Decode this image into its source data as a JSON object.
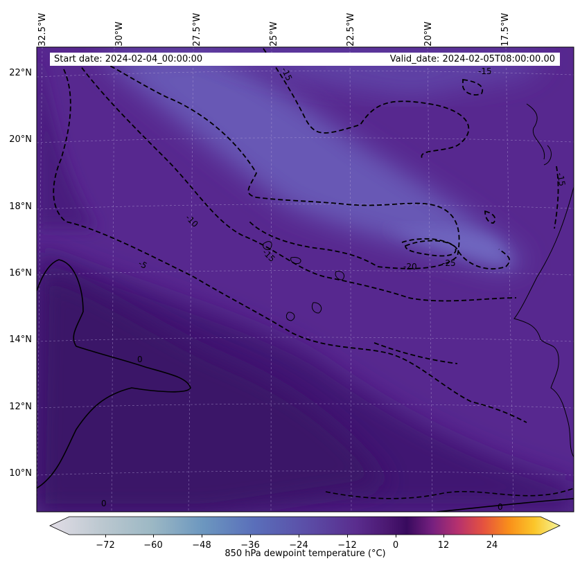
{
  "map": {
    "colorbar_label": "850 hPa dewpoint temperature ($^\\circ$C)",
    "colorbar_label_display": "850 hPa dewpoint temperature (°C)",
    "start_date": "Start date: 2024-02-04_00:00:00",
    "valid_date": "Valid_date: 2024-02-05T08:00:00.00",
    "longitude_labels": [
      "32.5°W",
      "30°W",
      "27.5°W",
      "25°W",
      "22.5°W",
      "20°W",
      "17.5°W"
    ],
    "latitude_labels": [
      "22°N",
      "20°N",
      "18°N",
      "16°N",
      "14°N",
      "12°N",
      "10°N"
    ],
    "colorbar_ticks": [
      "−72",
      "−60",
      "−48",
      "−36",
      "−24",
      "−12",
      "0",
      "12",
      "24"
    ],
    "contour_labels": [
      "-15",
      "-10",
      "-5",
      "0",
      "-15",
      "-20",
      "-25",
      "-15",
      "0",
      "0"
    ],
    "colors": {
      "background_fill": "#5a2f93",
      "dry_core": "#6b5bb8",
      "moist_south": "#3e1670",
      "coastline": "#000000",
      "contour": "#000000"
    }
  },
  "chart_data": {
    "type": "heatmap",
    "title": "",
    "variable": "850 hPa dewpoint temperature",
    "units": "°C",
    "colorbar_range": [
      -84,
      36
    ],
    "colorbar_ticks": [
      -72,
      -60,
      -48,
      -36,
      -24,
      -12,
      0,
      12,
      24
    ],
    "colormap": "ice-to-purple-to-inferno",
    "contour_levels": [
      -25,
      -20,
      -15,
      -10,
      -5,
      0
    ],
    "contour_style": "dashed for negative, solid for zero",
    "lon_range": [
      -32.5,
      -15.5
    ],
    "lat_range": [
      9,
      22.8
    ],
    "gridlines": true
  }
}
